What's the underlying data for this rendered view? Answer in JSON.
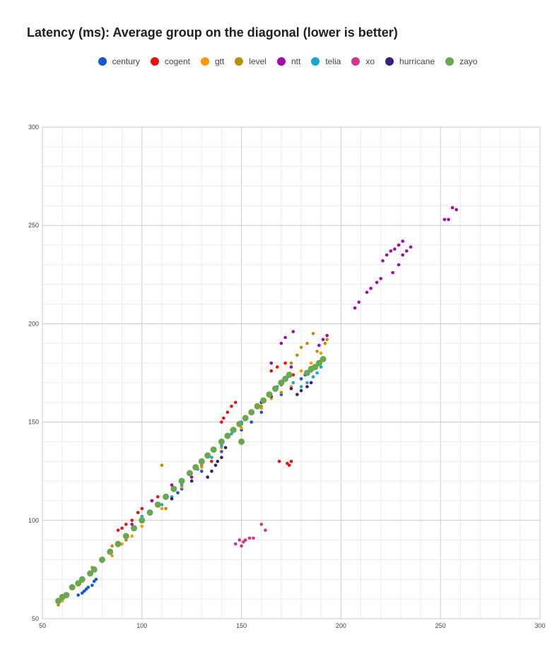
{
  "chart_data": {
    "type": "scatter",
    "title": "Latency (ms): Average group on the diagonal (lower is better)",
    "xlabel": "",
    "ylabel": "",
    "xlim": [
      50,
      300
    ],
    "ylim": [
      50,
      300
    ],
    "x_ticks": [
      "50",
      "100",
      "150",
      "200",
      "250",
      "300"
    ],
    "y_ticks": [
      "50",
      "100",
      "150",
      "200",
      "250",
      "300"
    ],
    "grid": true,
    "legend_position": "top-center",
    "series": [
      {
        "name": "century",
        "color": "#1558d6",
        "points": [
          [
            68,
            62
          ],
          [
            70,
            63
          ],
          [
            71,
            64
          ],
          [
            72,
            65
          ],
          [
            73,
            66
          ],
          [
            75,
            67
          ],
          [
            76,
            69
          ],
          [
            77,
            70
          ],
          [
            118,
            114
          ],
          [
            120,
            116
          ],
          [
            130,
            125
          ],
          [
            140,
            135
          ],
          [
            150,
            146
          ],
          [
            155,
            150
          ],
          [
            160,
            155
          ],
          [
            170,
            164
          ],
          [
            175,
            168
          ],
          [
            180,
            172
          ],
          [
            182,
            174
          ],
          [
            185,
            176
          ]
        ]
      },
      {
        "name": "cogent",
        "color": "#e8130e",
        "points": [
          [
            88,
            95
          ],
          [
            90,
            96
          ],
          [
            92,
            98
          ],
          [
            95,
            100
          ],
          [
            98,
            104
          ],
          [
            100,
            106
          ],
          [
            105,
            110
          ],
          [
            108,
            112
          ],
          [
            140,
            150
          ],
          [
            141,
            152
          ],
          [
            143,
            155
          ],
          [
            145,
            158
          ],
          [
            147,
            160
          ],
          [
            135,
            130
          ],
          [
            169,
            130
          ],
          [
            173,
            129
          ],
          [
            175,
            130
          ],
          [
            174,
            128
          ],
          [
            165,
            176
          ],
          [
            168,
            178
          ],
          [
            172,
            180
          ],
          [
            176,
            174
          ]
        ]
      },
      {
        "name": "gtt",
        "color": "#ff9900",
        "points": [
          [
            60,
            59
          ],
          [
            70,
            69
          ],
          [
            80,
            79
          ],
          [
            85,
            82
          ],
          [
            90,
            88
          ],
          [
            95,
            92
          ],
          [
            100,
            97
          ],
          [
            110,
            106
          ],
          [
            120,
            117
          ],
          [
            130,
            127
          ],
          [
            140,
            137
          ],
          [
            150,
            147
          ],
          [
            160,
            157
          ],
          [
            165,
            162
          ],
          [
            170,
            165
          ],
          [
            175,
            168
          ],
          [
            180,
            176
          ],
          [
            185,
            180
          ],
          [
            190,
            185
          ]
        ]
      },
      {
        "name": "level",
        "color": "#b8900a",
        "points": [
          [
            58,
            57
          ],
          [
            75,
            76
          ],
          [
            85,
            87
          ],
          [
            92,
            90
          ],
          [
            110,
            128
          ],
          [
            112,
            106
          ],
          [
            130,
            128
          ],
          [
            145,
            146
          ],
          [
            160,
            158
          ],
          [
            170,
            165
          ],
          [
            175,
            180
          ],
          [
            178,
            184
          ],
          [
            180,
            188
          ],
          [
            183,
            190
          ],
          [
            186,
            195
          ],
          [
            188,
            186
          ],
          [
            192,
            190
          ],
          [
            193,
            192
          ]
        ]
      },
      {
        "name": "ntt",
        "color": "#a10ab0",
        "points": [
          [
            95,
            98
          ],
          [
            105,
            110
          ],
          [
            115,
            118
          ],
          [
            125,
            122
          ],
          [
            165,
            180
          ],
          [
            175,
            178
          ],
          [
            170,
            190
          ],
          [
            172,
            193
          ],
          [
            176,
            196
          ],
          [
            189,
            189
          ],
          [
            191,
            192
          ],
          [
            193,
            194
          ],
          [
            207,
            208
          ],
          [
            209,
            211
          ],
          [
            213,
            216
          ],
          [
            215,
            218
          ],
          [
            218,
            221
          ],
          [
            220,
            223
          ],
          [
            221,
            232
          ],
          [
            223,
            235
          ],
          [
            225,
            237
          ],
          [
            227,
            238
          ],
          [
            229,
            240
          ],
          [
            231,
            242
          ],
          [
            226,
            226
          ],
          [
            229,
            230
          ],
          [
            231,
            235
          ],
          [
            233,
            237
          ],
          [
            235,
            239
          ],
          [
            252,
            253
          ],
          [
            254,
            253
          ],
          [
            256,
            259
          ],
          [
            258,
            258
          ]
        ]
      },
      {
        "name": "telia",
        "color": "#16a9c9",
        "points": [
          [
            100,
            102
          ],
          [
            110,
            108
          ],
          [
            115,
            112
          ],
          [
            120,
            118
          ],
          [
            128,
            126
          ],
          [
            135,
            132
          ],
          [
            140,
            138
          ],
          [
            145,
            144
          ],
          [
            150,
            150
          ],
          [
            160,
            160
          ],
          [
            168,
            168
          ],
          [
            172,
            172
          ],
          [
            176,
            170
          ],
          [
            180,
            168
          ],
          [
            183,
            170
          ],
          [
            186,
            173
          ],
          [
            188,
            175
          ],
          [
            190,
            178
          ]
        ]
      },
      {
        "name": "xo",
        "color": "#d6338a",
        "points": [
          [
            147,
            88
          ],
          [
            149,
            90
          ],
          [
            150,
            87
          ],
          [
            151,
            89
          ],
          [
            152,
            90
          ],
          [
            154,
            91
          ],
          [
            156,
            91
          ],
          [
            160,
            98
          ],
          [
            162,
            95
          ]
        ]
      },
      {
        "name": "hurricane",
        "color": "#3a1f7a",
        "points": [
          [
            115,
            111
          ],
          [
            125,
            120
          ],
          [
            133,
            122
          ],
          [
            135,
            125
          ],
          [
            137,
            128
          ],
          [
            138,
            130
          ],
          [
            140,
            132
          ],
          [
            142,
            137
          ],
          [
            150,
            149
          ],
          [
            155,
            155
          ],
          [
            160,
            160
          ],
          [
            165,
            163
          ],
          [
            170,
            169
          ],
          [
            175,
            167
          ],
          [
            178,
            164
          ],
          [
            180,
            166
          ],
          [
            183,
            168
          ],
          [
            185,
            170
          ]
        ]
      },
      {
        "name": "zayo",
        "color": "#6aa84f",
        "points": [
          [
            58,
            59
          ],
          [
            60,
            61
          ],
          [
            62,
            62
          ],
          [
            65,
            66
          ],
          [
            68,
            68
          ],
          [
            70,
            70
          ],
          [
            74,
            73
          ],
          [
            76,
            75
          ],
          [
            80,
            80
          ],
          [
            84,
            84
          ],
          [
            88,
            88
          ],
          [
            92,
            92
          ],
          [
            96,
            96
          ],
          [
            100,
            100
          ],
          [
            104,
            104
          ],
          [
            108,
            108
          ],
          [
            112,
            112
          ],
          [
            116,
            116
          ],
          [
            120,
            120
          ],
          [
            124,
            124
          ],
          [
            127,
            127
          ],
          [
            130,
            130
          ],
          [
            133,
            133
          ],
          [
            136,
            136
          ],
          [
            140,
            140
          ],
          [
            143,
            143
          ],
          [
            146,
            146
          ],
          [
            149,
            149
          ],
          [
            150,
            140
          ],
          [
            152,
            152
          ],
          [
            155,
            155
          ],
          [
            158,
            158
          ],
          [
            161,
            161
          ],
          [
            164,
            164
          ],
          [
            167,
            167
          ],
          [
            170,
            170
          ],
          [
            172,
            172
          ],
          [
            174,
            174
          ],
          [
            183,
            175
          ],
          [
            185,
            177
          ],
          [
            187,
            178
          ],
          [
            189,
            180
          ],
          [
            191,
            182
          ]
        ]
      }
    ]
  }
}
